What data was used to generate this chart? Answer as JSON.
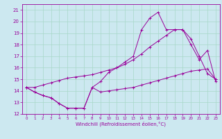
{
  "xlabel": "Windchill (Refroidissement éolien,°C)",
  "bg_color": "#cce8f0",
  "grid_color": "#a8d8c8",
  "line_color": "#990099",
  "xlim": [
    -0.5,
    23.5
  ],
  "ylim": [
    12,
    21.5
  ],
  "xticks": [
    0,
    1,
    2,
    3,
    4,
    5,
    6,
    7,
    8,
    9,
    10,
    11,
    12,
    13,
    14,
    15,
    16,
    17,
    18,
    19,
    20,
    21,
    22,
    23
  ],
  "yticks": [
    12,
    13,
    14,
    15,
    16,
    17,
    18,
    19,
    20,
    21
  ],
  "series1_x": [
    0,
    1,
    2,
    3,
    4,
    5,
    6,
    7,
    8,
    9,
    10,
    11,
    12,
    13,
    14,
    15,
    16,
    17,
    18,
    19,
    20,
    21,
    22,
    23
  ],
  "series1_y": [
    14.3,
    13.9,
    13.6,
    13.4,
    12.9,
    12.5,
    12.5,
    12.5,
    14.3,
    13.9,
    14.0,
    14.1,
    14.2,
    14.3,
    14.5,
    14.7,
    14.9,
    15.1,
    15.3,
    15.5,
    15.7,
    15.8,
    15.9,
    15.0
  ],
  "series2_x": [
    0,
    1,
    2,
    3,
    4,
    5,
    6,
    7,
    8,
    9,
    10,
    11,
    12,
    13,
    14,
    15,
    16,
    17,
    18,
    19,
    20,
    21,
    22,
    23
  ],
  "series2_y": [
    14.3,
    13.9,
    13.6,
    13.4,
    12.9,
    12.5,
    12.5,
    12.5,
    14.3,
    14.8,
    15.6,
    16.0,
    16.5,
    17.0,
    19.3,
    20.3,
    20.8,
    19.3,
    19.3,
    19.3,
    18.0,
    16.7,
    17.5,
    14.8
  ],
  "series3_x": [
    0,
    1,
    2,
    3,
    4,
    5,
    6,
    7,
    8,
    9,
    10,
    11,
    12,
    13,
    14,
    15,
    16,
    17,
    18,
    19,
    20,
    21,
    22,
    23
  ],
  "series3_y": [
    14.3,
    14.3,
    14.5,
    14.7,
    14.9,
    15.1,
    15.2,
    15.3,
    15.4,
    15.6,
    15.8,
    16.0,
    16.3,
    16.7,
    17.2,
    17.8,
    18.3,
    18.8,
    19.3,
    19.3,
    18.5,
    17.0,
    15.5,
    15.0
  ]
}
